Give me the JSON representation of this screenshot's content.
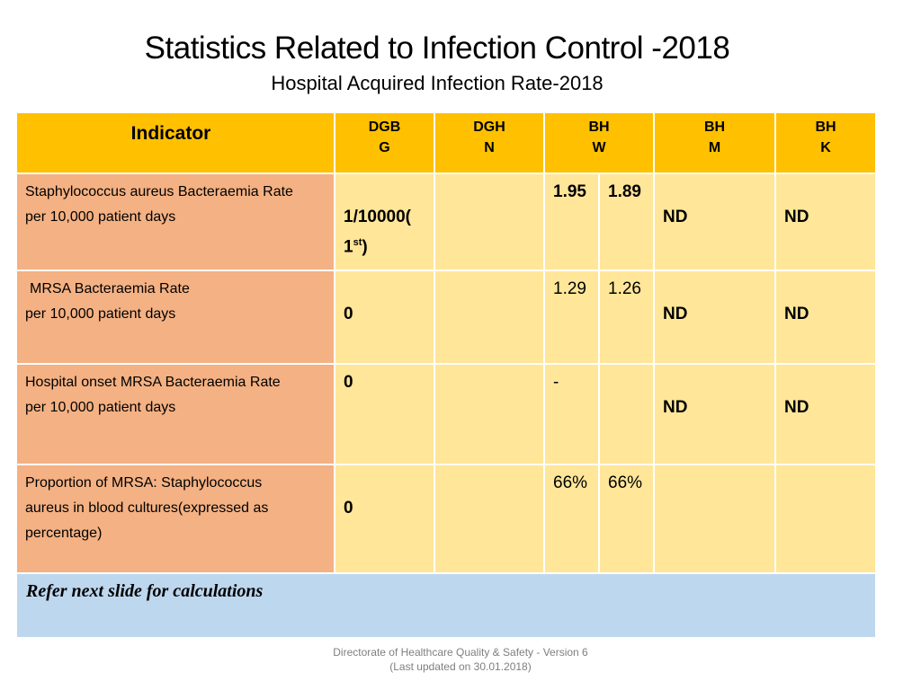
{
  "title": "Statistics Related to Infection Control -2018",
  "subtitle": "Hospital Acquired Infection Rate-2018",
  "table": {
    "header": {
      "indicator": "Indicator",
      "columns": [
        {
          "line1": "DGB",
          "line2": "G"
        },
        {
          "line1": "DGH",
          "line2": "N"
        },
        {
          "line1": "BH",
          "line2": "W"
        },
        {
          "line1": "BH",
          "line2": "M"
        },
        {
          "line1": "BH",
          "line2": "K"
        }
      ]
    },
    "rows": [
      {
        "indicator_line1": "Staphylococcus aureus Bacteraemia Rate",
        "indicator_line2": "per 10,000 patient days",
        "dgbg_main": "1/10000(",
        "dgbg_sub_base": "1",
        "dgbg_sub_sup": "st",
        "dgbg_sub_close": ")",
        "dghn": "",
        "bhw_a": "1.95",
        "bhw_b": "1.89",
        "bhm": "ND",
        "bhk": "ND"
      },
      {
        "indicator_line1": "MRSA Bacteraemia Rate",
        "indicator_line2": "per 10,000 patient days",
        "dgbg": "0",
        "dghn": "",
        "bhw_a": "1.29",
        "bhw_b": "1.26",
        "bhm": "ND",
        "bhk": "ND"
      },
      {
        "indicator_line1": "Hospital onset MRSA Bacteraemia Rate",
        "indicator_line2": "per 10,000 patient days",
        "dgbg": "0",
        "dghn": "",
        "bhw_a": "-",
        "bhw_b": "",
        "bhm": "ND",
        "bhk": "ND"
      },
      {
        "indicator_line1": "Proportion of MRSA: Staphylococcus",
        "indicator_line2": "aureus in blood cultures(expressed as",
        "indicator_line3": "percentage)",
        "dgbg": "0",
        "dghn": "",
        "bhw_a": "66%",
        "bhw_b": "66%",
        "bhm": "",
        "bhk": ""
      }
    ],
    "note": "Refer next slide for calculations"
  },
  "footer": {
    "line1": "Directorate of Healthcare Quality & Safety - Version 6",
    "line2": "(Last updated on 30.01.2018)"
  }
}
